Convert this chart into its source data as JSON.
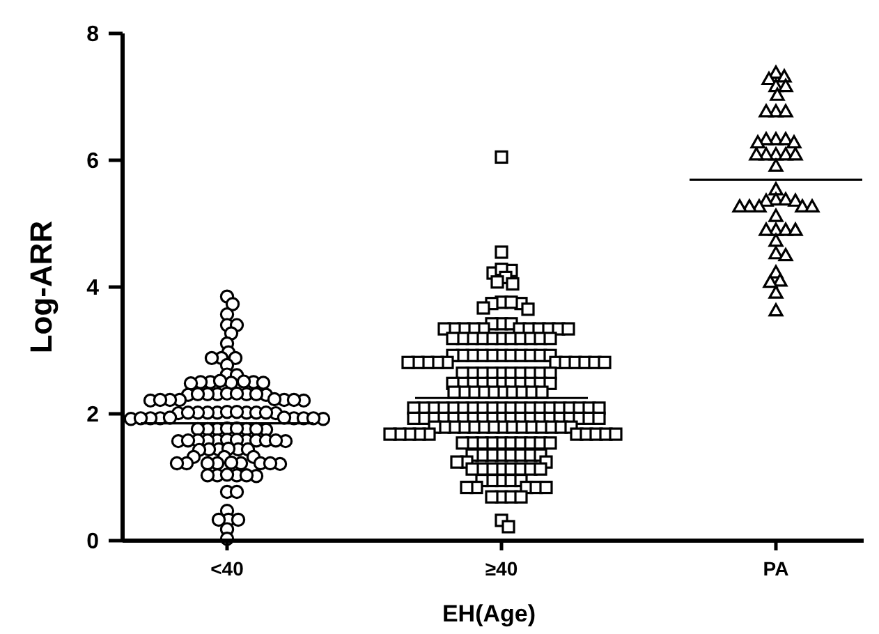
{
  "chart_data": {
    "type": "scatter",
    "xlabel": "EH(Age)",
    "ylabel": "Log-ARR",
    "categories": [
      "<40",
      "≥40",
      "PA"
    ],
    "ylim": [
      0,
      8
    ],
    "yticks": [
      0,
      2,
      4,
      6,
      8
    ],
    "series": [
      {
        "color": "#000000",
        "marker": "circle",
        "x": [
          "<40",
          "<40",
          "<40",
          "<40",
          "<40",
          "<40",
          "<40",
          "<40",
          "<40",
          "<40",
          "<40",
          "<40",
          "<40",
          "<40",
          "<40",
          "<40",
          "<40",
          "<40",
          "<40",
          "<40",
          "<40",
          "<40",
          "<40",
          "<40",
          "<40",
          "<40",
          "<40",
          "<40",
          "<40",
          "<40",
          "<40",
          "<40",
          "<40",
          "<40",
          "<40",
          "<40",
          "<40",
          "<40",
          "<40",
          "<40",
          "<40",
          "<40",
          "<40",
          "<40",
          "<40",
          "<40",
          "<40",
          "<40",
          "<40",
          "<40",
          "<40",
          "<40",
          "<40",
          "<40",
          "<40",
          "<40",
          "<40",
          "<40",
          "<40",
          "<40",
          "<40",
          "<40",
          "<40",
          "<40",
          "<40",
          "<40",
          "<40",
          "<40",
          "<40",
          "<40",
          "<40",
          "<40",
          "<40",
          "<40",
          "<40",
          "<40",
          "<40",
          "<40",
          "<40",
          "<40",
          "<40",
          "<40",
          "<40",
          "<40",
          "<40",
          "<40",
          "<40",
          "<40",
          "<40",
          "<40",
          "<40",
          "<40",
          "<40",
          "<40",
          "<40",
          "<40",
          "<40",
          "<40",
          "<40",
          "<40",
          "<40",
          "<40",
          "<40",
          "<40",
          "<40",
          "<40",
          "<40",
          "<40",
          "<40",
          "<40",
          "<40",
          "<40"
        ],
        "values": [
          3.85,
          3.73,
          3.57,
          3.4,
          3.4,
          3.27,
          3.11,
          2.97,
          2.88,
          2.88,
          2.88,
          2.77,
          2.62,
          2.61,
          2.5,
          2.5,
          2.49,
          2.49,
          2.51,
          2.5,
          2.48,
          2.52,
          2.31,
          2.31,
          2.3,
          2.32,
          2.31,
          2.3,
          2.31,
          2.32,
          2.31,
          2.22,
          2.22,
          2.21,
          2.23,
          2.22,
          2.22,
          2.21,
          2.22,
          2.02,
          2.02,
          2.03,
          2.01,
          2.02,
          2.02,
          2.03,
          2.02,
          2.01,
          2.02,
          2.02,
          1.93,
          1.93,
          1.94,
          1.92,
          1.93,
          1.93,
          1.94,
          1.93,
          1.92,
          1.93,
          1.76,
          1.76,
          1.77,
          1.75,
          1.76,
          1.76,
          1.77,
          1.76,
          1.58,
          1.58,
          1.59,
          1.57,
          1.58,
          1.58,
          1.59,
          1.58,
          1.57,
          1.58,
          1.58,
          1.58,
          1.44,
          1.44,
          1.44,
          1.45,
          1.43,
          1.44,
          1.32,
          1.32,
          1.32,
          1.22,
          1.22,
          1.22,
          1.23,
          1.21,
          1.22,
          1.22,
          1.22,
          1.22,
          1.03,
          1.03,
          1.04,
          1.02,
          1.03,
          1.03,
          0.77,
          0.77,
          0.47,
          0.33,
          0.33,
          0.33,
          0.18,
          0.03
        ]
      },
      {
        "color": "#000000",
        "marker": "square",
        "x": [
          "≥40",
          "≥40",
          "≥40",
          "≥40",
          "≥40",
          "≥40",
          "≥40",
          "≥40",
          "≥40",
          "≥40",
          "≥40",
          "≥40",
          "≥40",
          "≥40",
          "≥40",
          "≥40",
          "≥40",
          "≥40",
          "≥40",
          "≥40",
          "≥40",
          "≥40",
          "≥40",
          "≥40",
          "≥40",
          "≥40",
          "≥40",
          "≥40",
          "≥40",
          "≥40",
          "≥40",
          "≥40",
          "≥40",
          "≥40",
          "≥40",
          "≥40",
          "≥40",
          "≥40",
          "≥40",
          "≥40",
          "≥40",
          "≥40",
          "≥40",
          "≥40",
          "≥40",
          "≥40",
          "≥40",
          "≥40",
          "≥40",
          "≥40",
          "≥40",
          "≥40",
          "≥40",
          "≥40",
          "≥40",
          "≥40",
          "≥40",
          "≥40",
          "≥40",
          "≥40",
          "≥40",
          "≥40",
          "≥40",
          "≥40",
          "≥40",
          "≥40",
          "≥40",
          "≥40",
          "≥40",
          "≥40",
          "≥40",
          "≥40",
          "≥40",
          "≥40",
          "≥40",
          "≥40",
          "≥40",
          "≥40",
          "≥40",
          "≥40",
          "≥40",
          "≥40",
          "≥40",
          "≥40",
          "≥40",
          "≥40",
          "≥40",
          "≥40",
          "≥40",
          "≥40",
          "≥40",
          "≥40",
          "≥40",
          "≥40",
          "≥40",
          "≥40",
          "≥40",
          "≥40",
          "≥40",
          "≥40",
          "≥40",
          "≥40",
          "≥40",
          "≥40",
          "≥40",
          "≥40",
          "≥40",
          "≥40",
          "≥40",
          "≥40",
          "≥40",
          "≥40",
          "≥40",
          "≥40",
          "≥40",
          "≥40",
          "≥40",
          "≥40",
          "≥40",
          "≥40",
          "≥40",
          "≥40",
          "≥40",
          "≥40",
          "≥40",
          "≥40",
          "≥40",
          "≥40",
          "≥40",
          "≥40",
          "≥40",
          "≥40",
          "≥40",
          "≥40",
          "≥40",
          "≥40",
          "≥40",
          "≥40",
          "≥40",
          "≥40",
          "≥40",
          "≥40",
          "≥40",
          "≥40",
          "≥40",
          "≥40",
          "≥40",
          "≥40",
          "≥40",
          "≥40",
          "≥40",
          "≥40",
          "≥40",
          "≥40",
          "≥40",
          "≥40",
          "≥40",
          "≥40",
          "≥40",
          "≥40",
          "≥40",
          "≥40",
          "≥40",
          "≥40",
          "≥40",
          "≥40",
          "≥40",
          "≥40",
          "≥40",
          "≥40",
          "≥40",
          "≥40",
          "≥40",
          "≥40",
          "≥40",
          "≥40",
          "≥40",
          "≥40",
          "≥40",
          "≥40",
          "≥40",
          "≥40",
          "≥40",
          "≥40",
          "≥40",
          "≥40",
          "≥40",
          "≥40",
          "≥40",
          "≥40",
          "≥40",
          "≥40",
          "≥40",
          "≥40",
          "≥40",
          "≥40",
          "≥40",
          "≥40",
          "≥40",
          "≥40",
          "≥40",
          "≥40"
        ],
        "values": [
          6.05,
          4.55,
          4.26,
          4.22,
          4.28,
          4.15,
          4.08,
          4.05,
          3.76,
          3.74,
          3.74,
          3.76,
          3.65,
          3.67,
          3.42,
          3.42,
          3.42,
          3.34,
          3.34,
          3.34,
          3.34,
          3.34,
          3.34,
          3.34,
          3.34,
          3.34,
          3.34,
          3.34,
          3.19,
          3.19,
          3.19,
          3.19,
          3.19,
          3.19,
          3.19,
          3.19,
          3.19,
          3.19,
          3.19,
          2.92,
          2.92,
          2.92,
          2.92,
          2.92,
          2.92,
          2.92,
          2.92,
          2.92,
          2.92,
          2.92,
          2.81,
          2.81,
          2.81,
          2.81,
          2.81,
          2.81,
          2.81,
          2.81,
          2.81,
          2.81,
          2.81,
          2.64,
          2.64,
          2.64,
          2.64,
          2.64,
          2.64,
          2.64,
          2.64,
          2.64,
          2.64,
          2.48,
          2.48,
          2.48,
          2.48,
          2.48,
          2.48,
          2.48,
          2.48,
          2.48,
          2.48,
          2.48,
          2.34,
          2.34,
          2.34,
          2.34,
          2.34,
          2.34,
          2.34,
          2.34,
          2.34,
          2.34,
          2.09,
          2.09,
          2.09,
          2.09,
          2.09,
          2.09,
          2.09,
          2.09,
          2.09,
          2.09,
          2.09,
          2.09,
          2.09,
          2.09,
          2.09,
          2.09,
          2.09,
          2.09,
          2.09,
          2.09,
          1.93,
          1.93,
          1.93,
          1.93,
          1.93,
          1.93,
          1.93,
          1.93,
          1.93,
          1.93,
          1.93,
          1.93,
          1.93,
          1.93,
          1.93,
          1.93,
          1.93,
          1.93,
          1.93,
          1.93,
          1.79,
          1.79,
          1.79,
          1.79,
          1.79,
          1.79,
          1.79,
          1.79,
          1.79,
          1.79,
          1.79,
          1.79,
          1.79,
          1.79,
          1.79,
          1.68,
          1.68,
          1.68,
          1.68,
          1.68,
          1.68,
          1.68,
          1.68,
          1.68,
          1.68,
          1.54,
          1.54,
          1.54,
          1.54,
          1.54,
          1.54,
          1.54,
          1.54,
          1.54,
          1.54,
          1.35,
          1.35,
          1.35,
          1.35,
          1.35,
          1.35,
          1.35,
          1.35,
          1.24,
          1.24,
          1.24,
          1.13,
          1.13,
          1.13,
          1.13,
          1.13,
          1.13,
          1.13,
          1.13,
          0.95,
          0.95,
          0.95,
          0.95,
          0.95,
          0.84,
          0.84,
          0.84,
          0.84,
          0.84,
          0.69,
          0.69,
          0.69,
          0.69,
          0.32,
          0.22
        ]
      },
      {
        "color": "#000000",
        "marker": "triangle",
        "x": [
          "PA",
          "PA",
          "PA",
          "PA",
          "PA",
          "PA",
          "PA",
          "PA",
          "PA",
          "PA",
          "PA",
          "PA",
          "PA",
          "PA",
          "PA",
          "PA",
          "PA",
          "PA",
          "PA",
          "PA",
          "PA",
          "PA",
          "PA",
          "PA",
          "PA",
          "PA",
          "PA",
          "PA",
          "PA",
          "PA",
          "PA",
          "PA",
          "PA",
          "PA",
          "PA",
          "PA",
          "PA",
          "PA",
          "PA",
          "PA",
          "PA",
          "PA",
          "PA"
        ],
        "values": [
          7.38,
          7.32,
          7.28,
          7.17,
          7.17,
          7.03,
          6.77,
          6.77,
          6.77,
          6.33,
          6.33,
          6.33,
          6.28,
          6.28,
          6.09,
          6.09,
          6.09,
          6.09,
          6.09,
          5.91,
          5.54,
          5.38,
          5.38,
          5.36,
          5.36,
          5.27,
          5.27,
          5.27,
          5.27,
          5.27,
          5.12,
          4.9,
          4.9,
          4.9,
          4.9,
          4.73,
          4.53,
          4.5,
          4.23,
          4.1,
          4.08,
          3.91,
          3.63
        ]
      },
      {
        "type": "box",
        "color": "#000000",
        "boxes": [
          {
            "low": 1.85,
            "q1": 1.85,
            "median": 1.85,
            "q3": 1.85,
            "high": 1.85
          },
          {
            "low": 2.25,
            "q1": 2.25,
            "median": 2.25,
            "q3": 2.25,
            "high": 2.25
          },
          {
            "low": 5.69,
            "q1": 5.69,
            "median": 5.69,
            "q3": 5.69,
            "high": 5.69
          }
        ]
      }
    ]
  }
}
